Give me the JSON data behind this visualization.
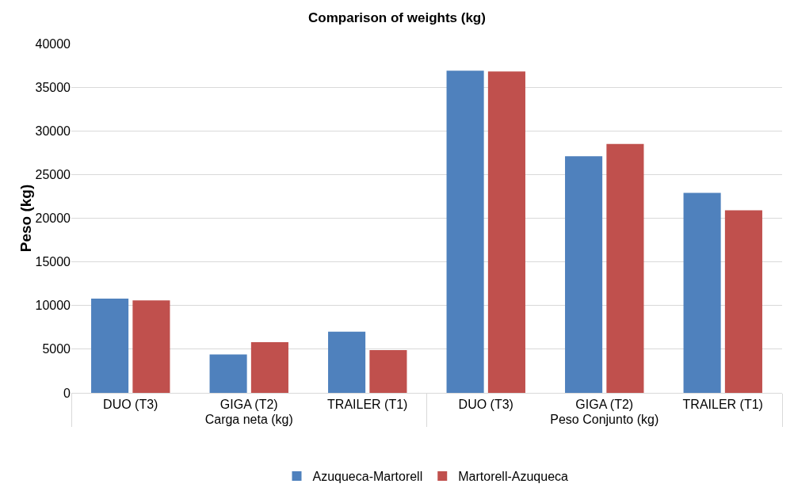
{
  "chart_data": {
    "type": "bar",
    "title": "Comparison of weights (kg)",
    "ylabel": "Peso (kg)",
    "categories": [
      "DUO (T3)",
      "GIGA (T2)",
      "TRAILER (T1)",
      "DUO (T3)",
      "GIGA (T2)",
      "TRAILER (T1)"
    ],
    "annotations": [
      "Carga neta (kg)",
      "Peso Conjunto (kg)"
    ],
    "series": [
      {
        "name": "Azuqueca-Martorell",
        "color": "#4f81bd",
        "values": [
          10800,
          4400,
          7000,
          36900,
          27100,
          22900
        ]
      },
      {
        "name": "Martorell-Azuqueca",
        "color": "#c0504d",
        "values": [
          10600,
          5800,
          4900,
          36800,
          28500,
          20900
        ]
      }
    ],
    "ylim": [
      0,
      40000
    ],
    "yticks": [
      0,
      5000,
      10000,
      15000,
      20000,
      25000,
      30000,
      35000,
      40000
    ],
    "grid": "y",
    "legend": "bottom"
  }
}
